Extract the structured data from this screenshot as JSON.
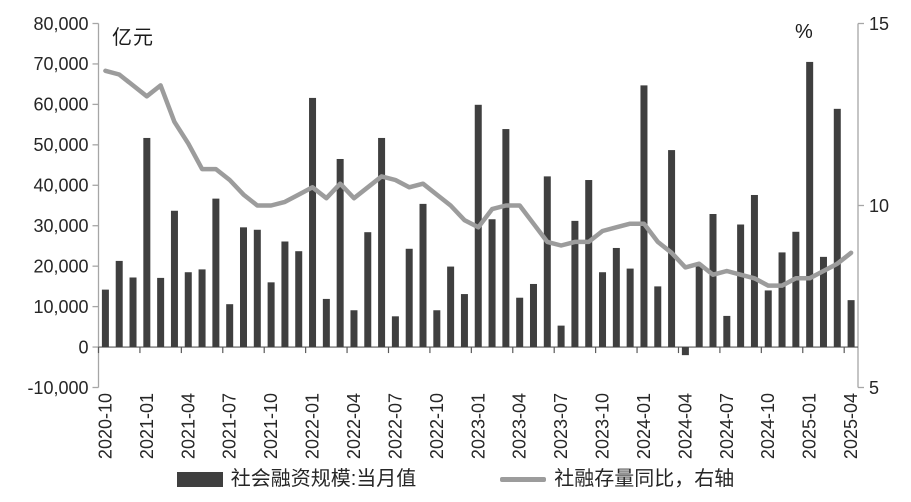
{
  "chart_data": {
    "type": "bar",
    "subtype": "bar-line-combo",
    "title": "",
    "left_axis": {
      "unit_label": "亿元",
      "min": -10000,
      "max": 80000,
      "tick_step": 10000,
      "tick_labels": [
        "80,000",
        "70,000",
        "60,000",
        "50,000",
        "40,000",
        "30,000",
        "20,000",
        "10,000",
        "0",
        "-10,000"
      ]
    },
    "right_axis": {
      "unit_label": "%",
      "min": 5,
      "max": 15,
      "tick_values": [
        15,
        10,
        5
      ],
      "tick_labels": [
        "15",
        "10",
        "5"
      ]
    },
    "x": {
      "label_every": 3,
      "months": [
        "2020-10",
        "2020-11",
        "2020-12",
        "2021-01",
        "2021-02",
        "2021-03",
        "2021-04",
        "2021-05",
        "2021-06",
        "2021-07",
        "2021-08",
        "2021-09",
        "2021-10",
        "2021-11",
        "2021-12",
        "2022-01",
        "2022-02",
        "2022-03",
        "2022-04",
        "2022-05",
        "2022-06",
        "2022-07",
        "2022-08",
        "2022-09",
        "2022-10",
        "2022-11",
        "2022-12",
        "2023-01",
        "2023-02",
        "2023-03",
        "2023-04",
        "2023-05",
        "2023-06",
        "2023-07",
        "2023-08",
        "2023-09",
        "2023-10",
        "2023-11",
        "2023-12",
        "2024-01",
        "2024-02",
        "2024-03",
        "2024-04",
        "2024-05",
        "2024-06",
        "2024-07",
        "2024-08",
        "2024-09",
        "2024-10",
        "2024-11",
        "2024-12",
        "2025-01",
        "2025-02",
        "2025-03",
        "2025-04"
      ]
    },
    "series": [
      {
        "name": "社会融资规模:当月值",
        "type": "bar",
        "axis": "left",
        "color": "#3f3f3f",
        "values": [
          14200,
          21300,
          17200,
          51700,
          17100,
          33700,
          18500,
          19200,
          36700,
          10600,
          29600,
          29000,
          16000,
          26100,
          23700,
          61600,
          11900,
          46500,
          9100,
          28400,
          51700,
          7600,
          24300,
          35400,
          9100,
          19900,
          13100,
          59900,
          31600,
          53900,
          12200,
          15600,
          42200,
          5300,
          31200,
          41300,
          18500,
          24500,
          19400,
          64700,
          15000,
          48700,
          -2000,
          20600,
          32900,
          7700,
          30300,
          37600,
          14000,
          23400,
          28500,
          70500,
          22300,
          58900,
          11600
        ]
      },
      {
        "name": "社融存量同比，右轴",
        "type": "line",
        "axis": "right",
        "color": "#9c9c9c",
        "values": [
          13.7,
          13.6,
          13.3,
          13.0,
          13.3,
          12.3,
          11.7,
          11.0,
          11.0,
          10.7,
          10.3,
          10.0,
          10.0,
          10.1,
          10.3,
          10.5,
          10.2,
          10.6,
          10.2,
          10.5,
          10.8,
          10.7,
          10.5,
          10.6,
          10.3,
          10.0,
          9.6,
          9.4,
          9.9,
          10.0,
          10.0,
          9.5,
          9.0,
          8.9,
          9.0,
          9.0,
          9.3,
          9.4,
          9.5,
          9.5,
          9.0,
          8.7,
          8.3,
          8.4,
          8.1,
          8.2,
          8.1,
          8.0,
          7.8,
          7.8,
          8.0,
          8.0,
          8.2,
          8.4,
          8.7
        ]
      }
    ],
    "legend_position": "bottom",
    "grid": false
  },
  "colors": {
    "background": "#ffffff",
    "axis_line": "#a6a6a6",
    "zero_line": "#595959",
    "tick_text": "#262626",
    "bar": "#3f3f3f",
    "line": "#9c9c9c"
  }
}
